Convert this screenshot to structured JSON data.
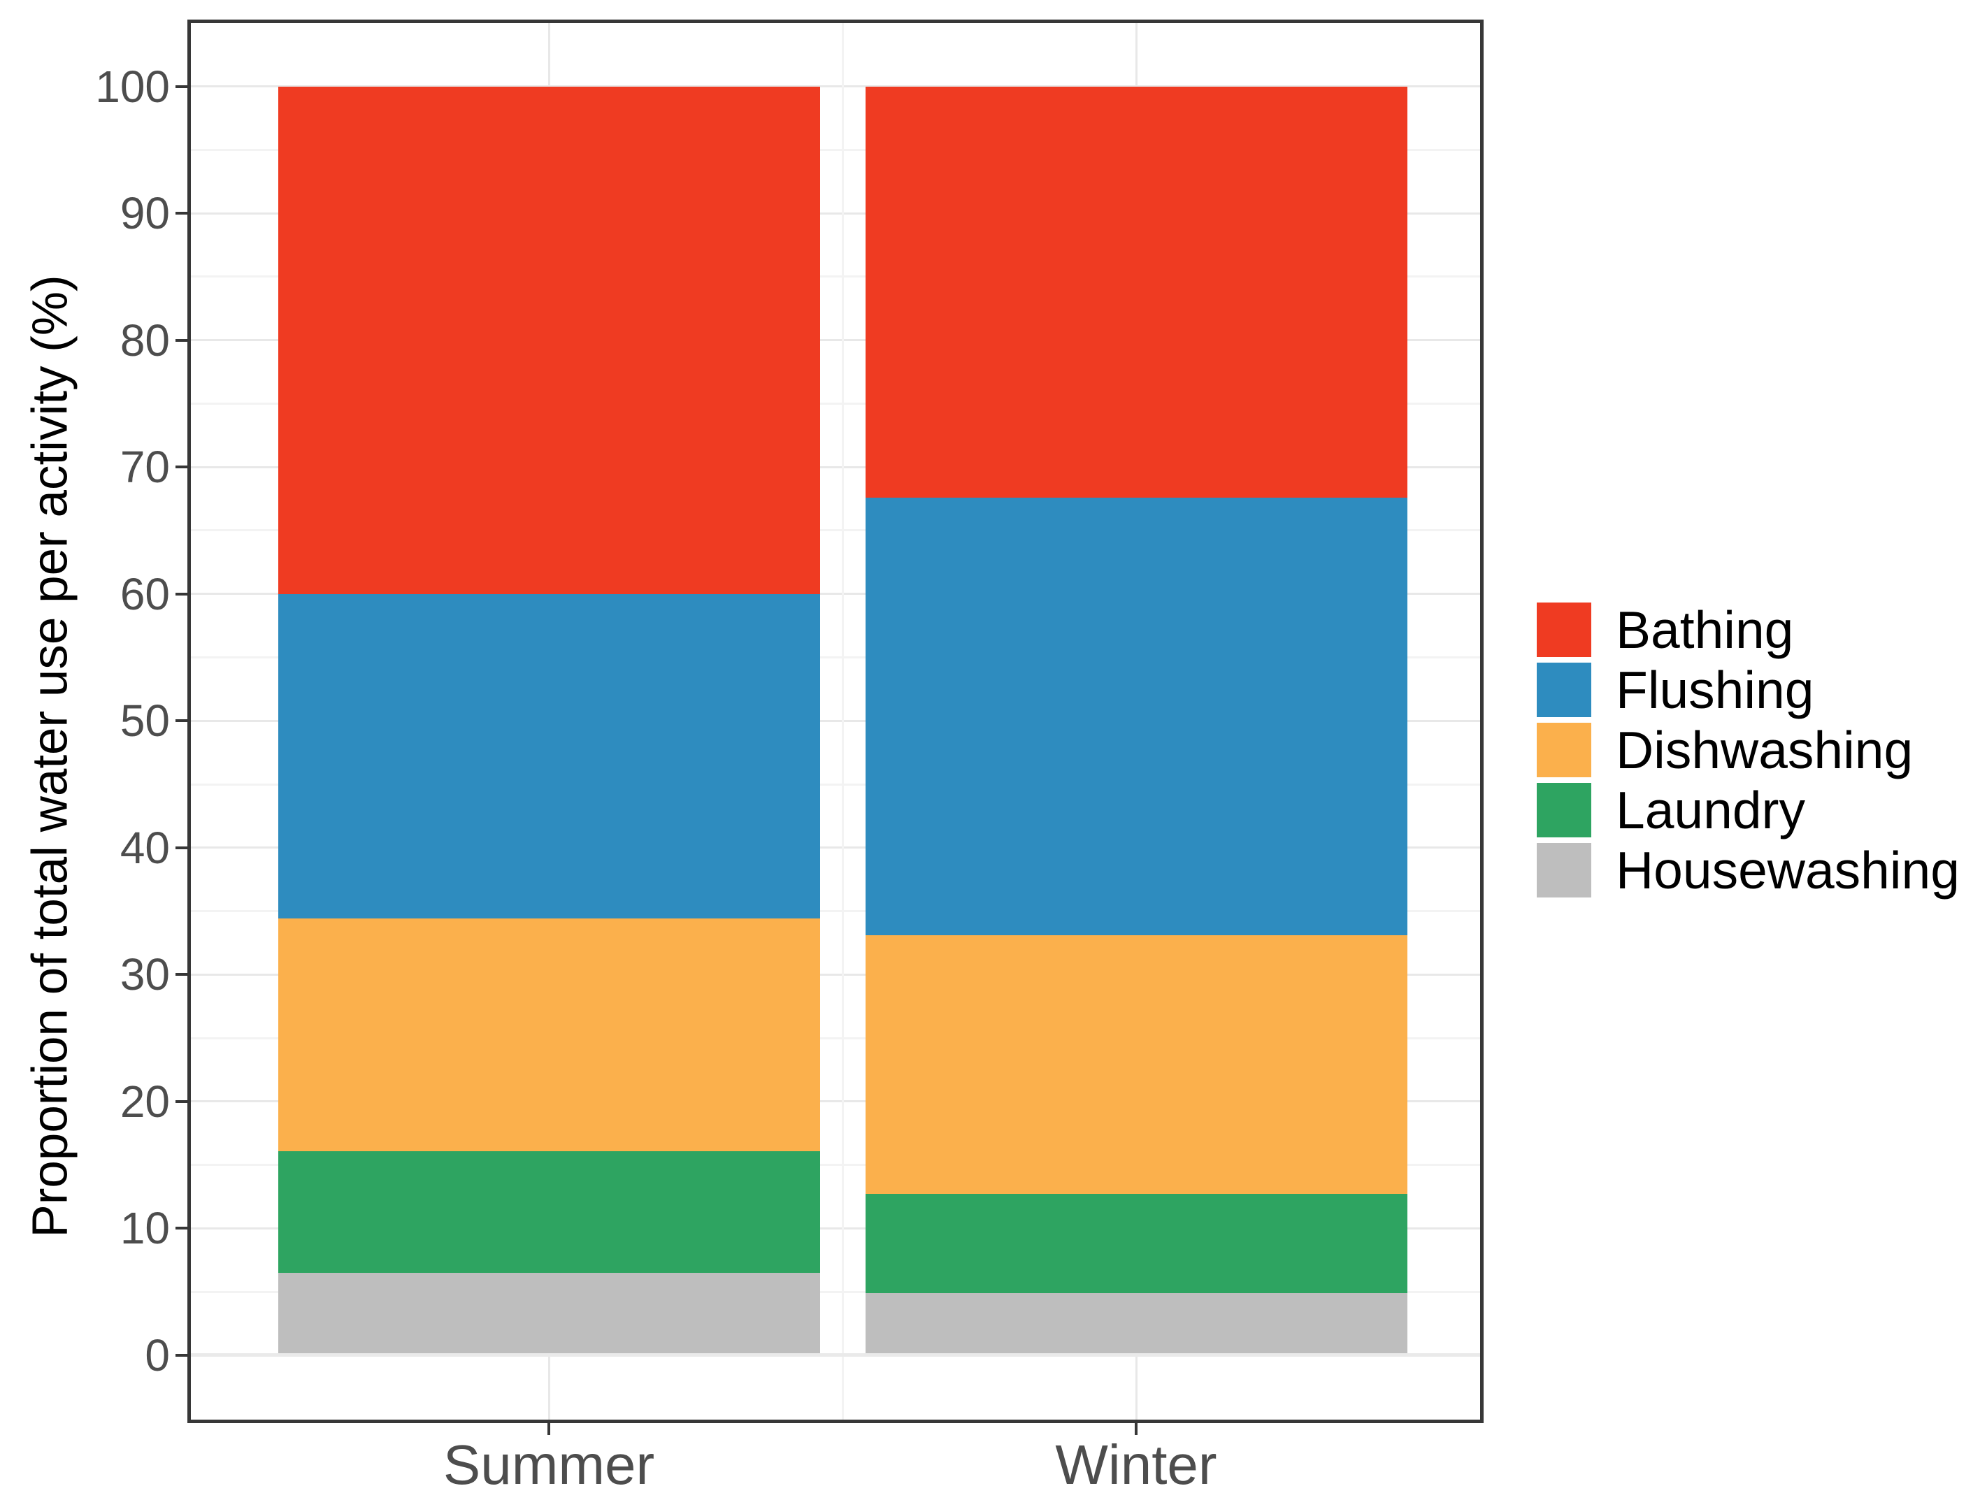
{
  "chart_data": {
    "type": "bar",
    "stacked": true,
    "categories": [
      "Summer",
      "Winter"
    ],
    "series": [
      {
        "name": "Housewashing",
        "color": "#bebebe",
        "values": [
          6.5,
          4.9
        ]
      },
      {
        "name": "Laundry",
        "color": "#2ea461",
        "values": [
          9.6,
          7.8
        ]
      },
      {
        "name": "Dishwashing",
        "color": "#fbb04c",
        "values": [
          18.3,
          20.4
        ]
      },
      {
        "name": "Flushing",
        "color": "#2e8cbf",
        "values": [
          25.6,
          34.5
        ]
      },
      {
        "name": "Bathing",
        "color": "#ef3b22",
        "values": [
          40.0,
          32.4
        ]
      }
    ],
    "title": "",
    "xlabel": "",
    "ylabel": "Proportion of total water use per activity (%)",
    "ylim": [
      0,
      100
    ],
    "y_major_ticks": [
      0,
      10,
      20,
      30,
      40,
      50,
      60,
      70,
      80,
      90,
      100
    ],
    "y_minor_step": 5,
    "grid": true,
    "legend_position": "right"
  },
  "legend": {
    "items": [
      {
        "label": "Bathing",
        "color": "#ef3b22"
      },
      {
        "label": "Flushing",
        "color": "#2e8cbf"
      },
      {
        "label": "Dishwashing",
        "color": "#fbb04c"
      },
      {
        "label": "Laundry",
        "color": "#2ea461"
      },
      {
        "label": "Housewashing",
        "color": "#bebebe"
      }
    ]
  },
  "colors": {
    "panel_border": "#373737",
    "tick_mark": "#373737",
    "axis_text": "#4d4d4d",
    "grid_major": "#e8e8e8",
    "grid_minor": "#f3f3f3",
    "background": "#ffffff"
  }
}
